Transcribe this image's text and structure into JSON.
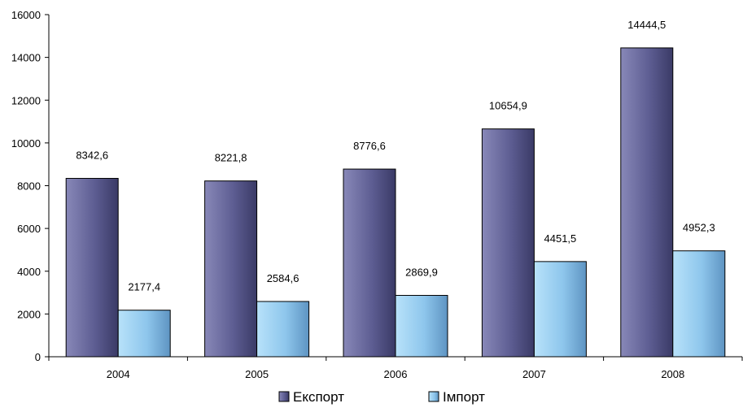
{
  "chart_data": {
    "type": "bar",
    "categories": [
      "2004",
      "2005",
      "2006",
      "2007",
      "2008"
    ],
    "series": [
      {
        "name": "Експорт",
        "values": [
          8342.6,
          8221.8,
          8776.6,
          10654.9,
          14444.5
        ],
        "labels": [
          "8342,6",
          "8221,8",
          "8776,6",
          "10654,9",
          "14444,5"
        ],
        "color": "#5a5a8e"
      },
      {
        "name": "Імпорт",
        "values": [
          2177.4,
          2584.6,
          2869.9,
          4451.5,
          4952.3
        ],
        "labels": [
          "2177,4",
          "2584,6",
          "2869,9",
          "4451,5",
          "4952,3"
        ],
        "color": "#8fc8ee"
      }
    ],
    "yticks": [
      0,
      2000,
      4000,
      6000,
      8000,
      10000,
      12000,
      14000,
      16000
    ],
    "ylim": [
      0,
      16000
    ],
    "grid": false,
    "legend_position": "bottom"
  }
}
